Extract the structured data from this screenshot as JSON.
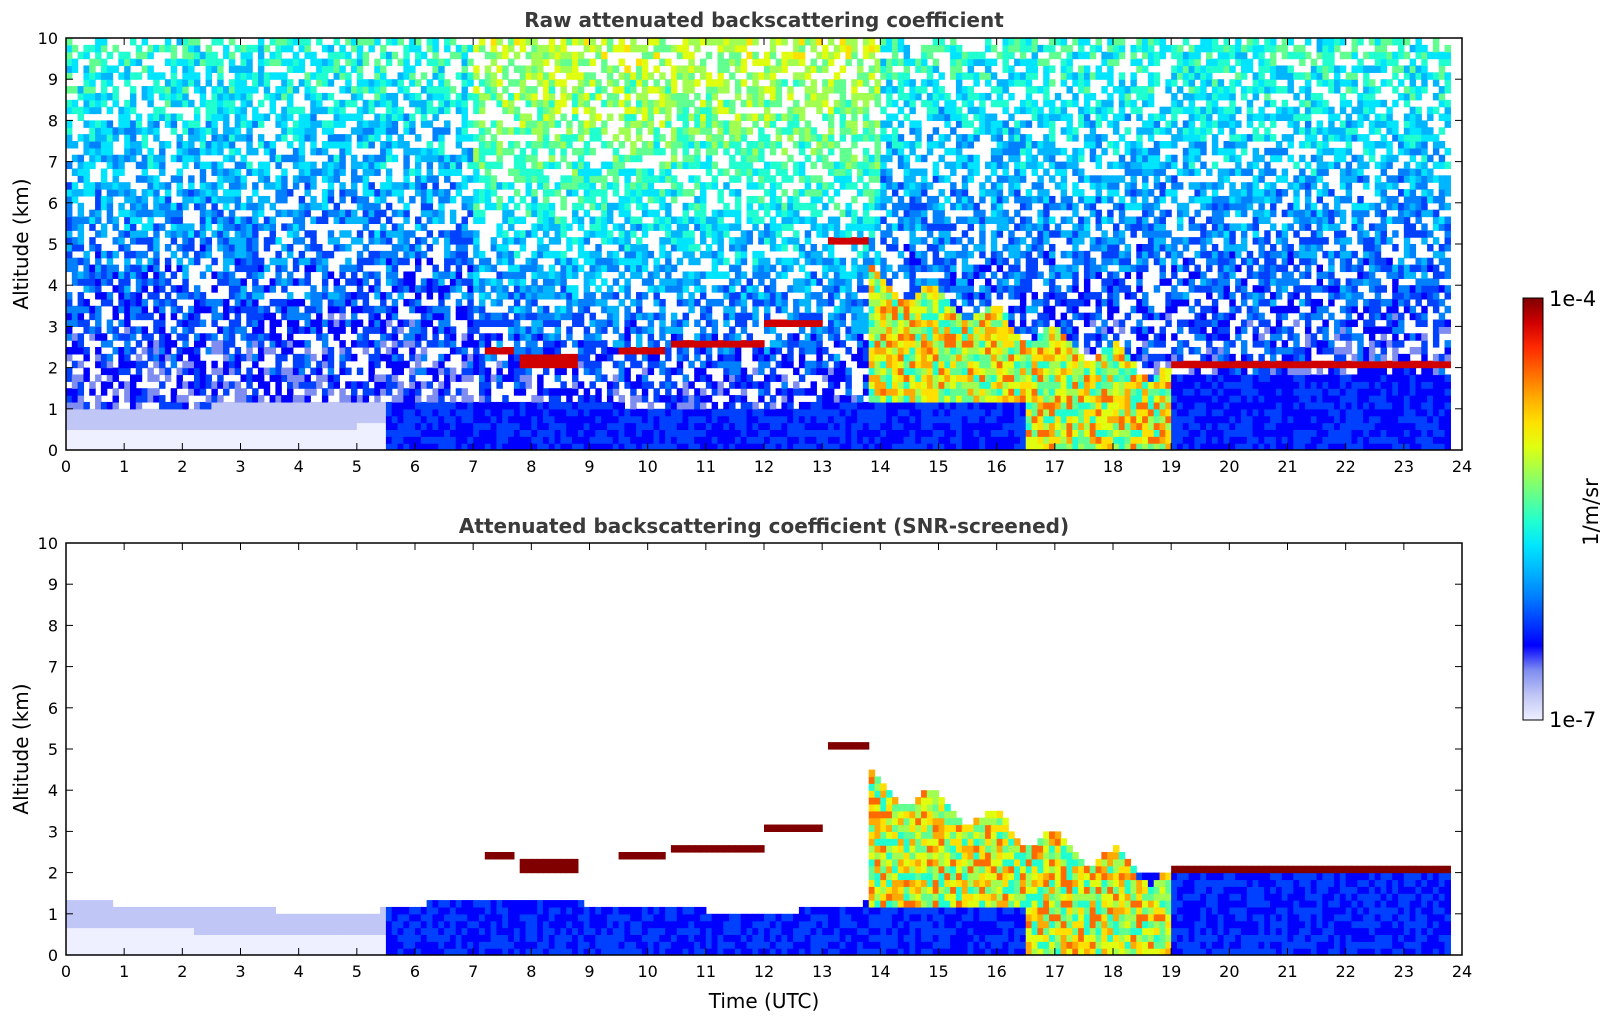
{
  "colors": {
    "jet": [
      "#eef0ff",
      "#c0c6f5",
      "#7f8df0",
      "#0000ff",
      "#0040ff",
      "#0080ff",
      "#00b5ff",
      "#00e5ff",
      "#20ffd0",
      "#60ff90",
      "#a0ff50",
      "#e0ff10",
      "#ffe000",
      "#ffaa00",
      "#ff6a00",
      "#ff2a00",
      "#d00000",
      "#800000"
    ],
    "frame": "#000000",
    "title": "#3a3a3a"
  },
  "colorbar": {
    "top_label": "1e-4",
    "bottom_label": "1e-7",
    "unit": "1/m/sr",
    "scale": "log",
    "range": [
      1e-07,
      0.0001
    ]
  },
  "chart_data": [
    {
      "type": "heatmap",
      "title": "Raw attenuated backscattering coefficient",
      "xlabel": "",
      "ylabel": "Altitude (km)",
      "xlim": [
        0,
        24
      ],
      "ylim": [
        0,
        10
      ],
      "x_ticks": [
        "0",
        "1",
        "2",
        "3",
        "4",
        "5",
        "6",
        "7",
        "8",
        "9",
        "10",
        "11",
        "12",
        "13",
        "14",
        "15",
        "16",
        "17",
        "18",
        "19",
        "20",
        "21",
        "22",
        "23",
        "24"
      ],
      "y_ticks": [
        "0",
        "1",
        "2",
        "3",
        "4",
        "5",
        "6",
        "7",
        "8",
        "9",
        "10"
      ],
      "grid": false,
      "features": {
        "noisy_background": true,
        "boundary_layer_top_km": [
          [
            0,
            1.0
          ],
          [
            6,
            1.2
          ],
          [
            12,
            1.0
          ],
          [
            19,
            1.9
          ],
          [
            23.8,
            1.9
          ]
        ],
        "cloud_layers": [
          {
            "t": [
              7.2,
              7.7
            ],
            "alt_km": 2.4
          },
          {
            "t": [
              7.8,
              8.8
            ],
            "alt_km": 2.2
          },
          {
            "t": [
              9.5,
              10.3
            ],
            "alt_km": 2.4
          },
          {
            "t": [
              10.4,
              12.0
            ],
            "alt_km": 2.6
          },
          {
            "t": [
              12.0,
              13.0
            ],
            "alt_km": 3.1
          },
          {
            "t": [
              13.1,
              13.8
            ],
            "alt_km": 5.1
          },
          {
            "t": [
              19.0,
              23.8
            ],
            "alt_km": 2.1
          }
        ],
        "precipitation_band": {
          "t": [
            13.8,
            19.0
          ]
        }
      }
    },
    {
      "type": "heatmap",
      "title": "Attenuated backscattering coefficient (SNR-screened)",
      "xlabel": "Time (UTC)",
      "ylabel": "Altitude (km)",
      "xlim": [
        0,
        24
      ],
      "ylim": [
        0,
        10
      ],
      "x_ticks": [
        "0",
        "1",
        "2",
        "3",
        "4",
        "5",
        "6",
        "7",
        "8",
        "9",
        "10",
        "11",
        "12",
        "13",
        "14",
        "15",
        "16",
        "17",
        "18",
        "19",
        "20",
        "21",
        "22",
        "23",
        "24"
      ],
      "y_ticks": [
        "0",
        "1",
        "2",
        "3",
        "4",
        "5",
        "6",
        "7",
        "8",
        "9",
        "10"
      ],
      "grid": false,
      "features": {
        "noisy_background": false,
        "boundary_layer_top_km": [
          [
            0,
            1.3
          ],
          [
            5,
            1.0
          ],
          [
            7,
            1.4
          ],
          [
            12,
            1.0
          ],
          [
            19,
            2.0
          ],
          [
            23.8,
            2.0
          ]
        ],
        "cloud_layers": [
          {
            "t": [
              7.2,
              7.7
            ],
            "alt_km": 2.4
          },
          {
            "t": [
              7.8,
              8.8
            ],
            "alt_km": 2.2
          },
          {
            "t": [
              9.5,
              10.3
            ],
            "alt_km": 2.4
          },
          {
            "t": [
              10.4,
              12.0
            ],
            "alt_km": 2.6
          },
          {
            "t": [
              12.0,
              13.0
            ],
            "alt_km": 3.1
          },
          {
            "t": [
              13.1,
              13.8
            ],
            "alt_km": 5.1
          },
          {
            "t": [
              19.0,
              23.8
            ],
            "alt_km": 2.1
          }
        ],
        "precipitation_band": {
          "t": [
            13.8,
            19.0
          ]
        }
      }
    }
  ]
}
